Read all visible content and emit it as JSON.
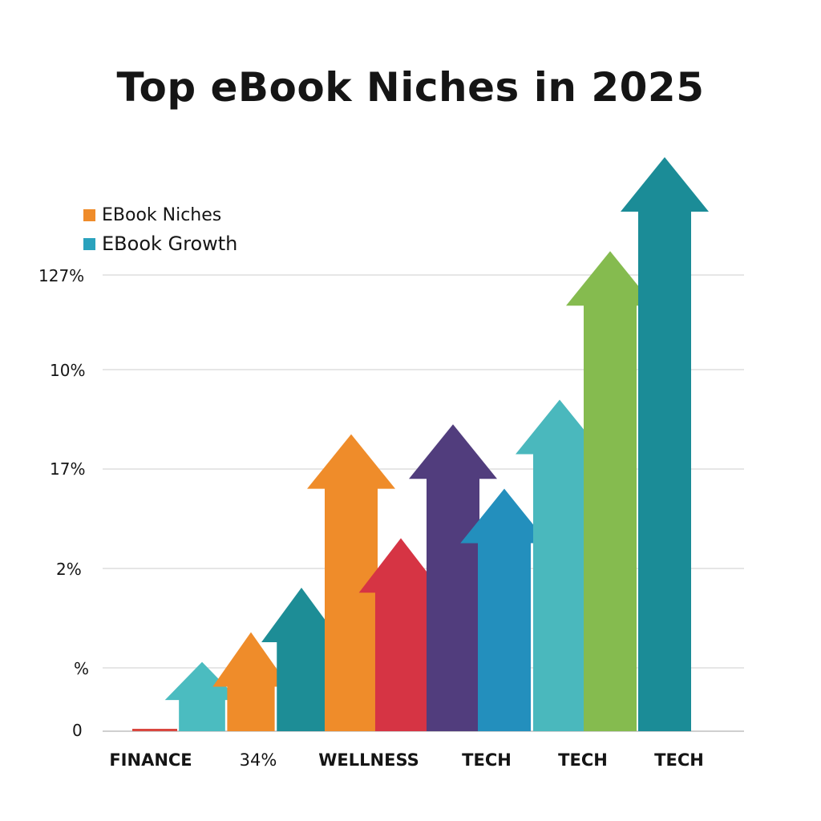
{
  "chart_data": {
    "type": "bar",
    "title": "Top eBook Niches in 2025",
    "xlabel": "",
    "ylabel": "",
    "legend": {
      "placement": "top-left",
      "entries": [
        {
          "label": "EBook Niches",
          "color": "#ef8c2a"
        },
        {
          "label": "EBook Growth",
          "color": "#2aa2bd"
        }
      ]
    },
    "y_tick_labels": [
      "0",
      "%",
      "2%",
      "17%",
      "10%",
      "127%"
    ],
    "x_tick_labels": [
      "FINANCE",
      "34%",
      "WELLNESS",
      "TECH",
      "TECH",
      "TECH"
    ],
    "grid": true,
    "values": [
      0.3,
      7,
      10,
      14.5,
      30,
      19.5,
      31,
      24.5,
      33.5,
      48.5,
      58
    ]
  },
  "colors": {
    "bars": [
      "#d9473f",
      "#4bbcc0",
      "#ef8c2a",
      "#1d8d96",
      "#ef8c2a",
      "#d63444",
      "#513d7d",
      "#238fbd",
      "#4ab8bd",
      "#85bb4f",
      "#1b8c97"
    ],
    "grid": "#dedede",
    "axis": "#cfcfcf"
  }
}
